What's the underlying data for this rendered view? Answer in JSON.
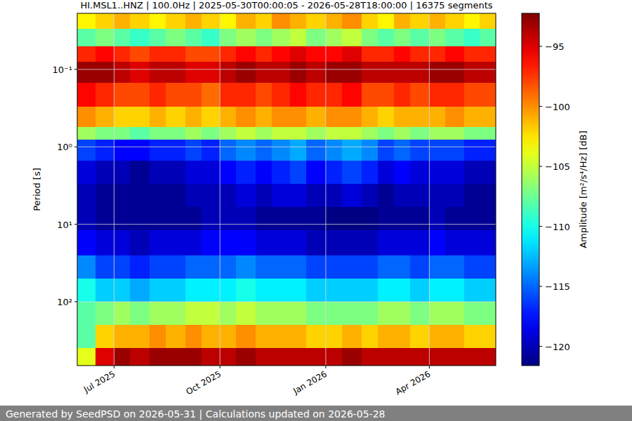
{
  "chart_data": {
    "type": "heatmap",
    "title": "HI.MSL1..HNZ | 100.0Hz | 2025-05-30T00:00:05 - 2026-05-28T18:00:00 | 16375 segments",
    "y_label": "Period [s]",
    "annotations": [
      "Generated by SeedPSD on 2026-05-31 | Calculations updated on 2026-05-28"
    ],
    "log": "y",
    "grid": true,
    "xlim": [
      "2025-05-30T00:00:05",
      "2026-05-28T18:00:00"
    ],
    "xticks": [
      {
        "value": "2025-07-01",
        "label": "Jul 2025"
      },
      {
        "value": "2025-10-01",
        "label": "Oct 2025"
      },
      {
        "value": "2026-01-01",
        "label": "Jan 2026"
      },
      {
        "value": "2026-04-01",
        "label": "Apr 2026"
      }
    ],
    "ylim": [
      0.0189,
      667
    ],
    "yticks": [
      {
        "value": 0.1,
        "label": "10⁻¹"
      },
      {
        "value": 1,
        "label": "10⁰"
      },
      {
        "value": 10,
        "label": "10¹"
      },
      {
        "value": 100,
        "label": "10²"
      }
    ],
    "x_bins": [
      "2025-05-30T00:00:05",
      "2025-06-15",
      "2025-07-01",
      "2025-07-15",
      "2025-08-01",
      "2025-08-15",
      "2025-09-01",
      "2025-09-15",
      "2025-10-01",
      "2025-10-15",
      "2025-11-01",
      "2025-11-15",
      "2025-12-01",
      "2025-12-15",
      "2026-01-01",
      "2026-01-15",
      "2026-02-01",
      "2026-02-15",
      "2026-03-01",
      "2026-03-15",
      "2026-04-01",
      "2026-04-15",
      "2026-05-01",
      "2026-05-15",
      "2026-05-28T18:00:00"
    ],
    "y_bins": [
      0.0189,
      0.03,
      0.05,
      0.08,
      0.15,
      0.3,
      0.55,
      0.8,
      1.5,
      3,
      6,
      12,
      25,
      50,
      100,
      200,
      400,
      667
    ],
    "cells": [
      [
        -103,
        -102,
        -101,
        -102,
        -103,
        -102,
        -101,
        -102,
        -103,
        -101,
        -102,
        -100,
        -101,
        -102,
        -101,
        -100,
        -102,
        -103,
        -101,
        -102,
        -101,
        -102,
        -103,
        -102
      ],
      [
        -108,
        -107,
        -108,
        -109,
        -108,
        -107,
        -108,
        -109,
        -107,
        -106,
        -107,
        -106,
        -105,
        -107,
        -106,
        -105,
        -107,
        -108,
        -107,
        -108,
        -107,
        -108,
        -109,
        -108
      ],
      [
        -97,
        -96,
        -97,
        -98,
        -97,
        -97,
        -98,
        -98,
        -97,
        -96,
        -97,
        -96,
        -95,
        -96,
        -96,
        -95,
        -97,
        -97,
        -96,
        -97,
        -97,
        -96,
        -97,
        -97
      ],
      [
        -93,
        -93,
        -94,
        -95,
        -94,
        -94,
        -95,
        -95,
        -94,
        -93,
        -94,
        -94,
        -93,
        -94,
        -93,
        -93,
        -94,
        -94,
        -94,
        -94,
        -93,
        -93,
        -94,
        -94
      ],
      [
        -96,
        -97,
        -98,
        -98,
        -97,
        -98,
        -98,
        -99,
        -97,
        -97,
        -98,
        -97,
        -96,
        -97,
        -97,
        -96,
        -98,
        -98,
        -97,
        -98,
        -97,
        -97,
        -98,
        -98
      ],
      [
        -100,
        -101,
        -102,
        -102,
        -101,
        -102,
        -101,
        -102,
        -101,
        -100,
        -101,
        -100,
        -100,
        -101,
        -100,
        -100,
        -101,
        -102,
        -101,
        -101,
        -101,
        -100,
        -101,
        -101
      ],
      [
        -106,
        -107,
        -107,
        -108,
        -107,
        -107,
        -106,
        -107,
        -106,
        -105,
        -106,
        -105,
        -105,
        -106,
        -105,
        -105,
        -106,
        -107,
        -106,
        -107,
        -106,
        -106,
        -107,
        -107
      ],
      [
        -116,
        -117,
        -118,
        -118,
        -117,
        -117,
        -116,
        -117,
        -115,
        -114,
        -115,
        -114,
        -113,
        -115,
        -114,
        -113,
        -114,
        -116,
        -115,
        -116,
        -116,
        -116,
        -117,
        -117
      ],
      [
        -119,
        -120,
        -120,
        -121,
        -120,
        -120,
        -119,
        -119,
        -118,
        -117,
        -118,
        -117,
        -116,
        -118,
        -117,
        -116,
        -117,
        -119,
        -118,
        -119,
        -119,
        -119,
        -120,
        -120
      ],
      [
        -120,
        -121,
        -121,
        -121,
        -121,
        -121,
        -120,
        -120,
        -120,
        -119,
        -120,
        -119,
        -119,
        -120,
        -120,
        -119,
        -120,
        -121,
        -120,
        -120,
        -120,
        -120,
        -121,
        -121
      ],
      [
        -120,
        -121,
        -121,
        -121,
        -121,
        -121,
        -121,
        -120,
        -120,
        -120,
        -121,
        -121,
        -121,
        -121,
        -121.5,
        -121.5,
        -121.5,
        -121,
        -121,
        -121,
        -120,
        -121,
        -121,
        -121
      ],
      [
        -118,
        -119,
        -119,
        -120,
        -119,
        -119,
        -119,
        -118,
        -118,
        -118,
        -119,
        -119,
        -119,
        -120,
        -120,
        -120,
        -120,
        -119,
        -119,
        -119,
        -118,
        -119,
        -119,
        -119
      ],
      [
        -114,
        -116,
        -116,
        -117,
        -116,
        -116,
        -115,
        -115,
        -115,
        -114,
        -115,
        -115,
        -115,
        -116,
        -116,
        -116,
        -116,
        -115,
        -115,
        -116,
        -115,
        -115,
        -116,
        -116
      ],
      [
        -110,
        -112,
        -112,
        -113,
        -112,
        -112,
        -111,
        -111,
        -111,
        -110,
        -111,
        -111,
        -111,
        -112,
        -112,
        -112,
        -112,
        -111,
        -111,
        -112,
        -111,
        -111,
        -112,
        -112
      ],
      [
        -108,
        -107,
        -106,
        -107,
        -106,
        -106,
        -105,
        -105,
        -106,
        -105,
        -106,
        -106,
        -106,
        -107,
        -107,
        -107,
        -107,
        -106,
        -106,
        -107,
        -106,
        -106,
        -107,
        -107
      ],
      [
        -108,
        -102,
        -101,
        -101,
        -100,
        -101,
        -100,
        -101,
        -101,
        -100,
        -101,
        -101,
        -101,
        -102,
        -102,
        -101,
        -102,
        -101,
        -101,
        -102,
        -101,
        -101,
        -102,
        -102
      ],
      [
        -104,
        -95,
        -93,
        -94,
        -93,
        -93,
        -93,
        -94,
        -94,
        -93,
        -94,
        -94,
        -94,
        -94,
        -94,
        -93,
        -94,
        -94,
        -94,
        -94,
        -94,
        -94,
        -94,
        -94
      ]
    ],
    "colorbar": {
      "label": "Amplitude [m²/s⁴/Hz] [dB]",
      "lim": [
        -121.6,
        -92.25
      ],
      "ticks": [
        {
          "value": -95,
          "label": "−95"
        },
        {
          "value": -100,
          "label": "−100"
        },
        {
          "value": -105,
          "label": "−105"
        },
        {
          "value": -110,
          "label": "−110"
        },
        {
          "value": -115,
          "label": "−115"
        },
        {
          "value": -120,
          "label": "−120"
        }
      ]
    }
  }
}
